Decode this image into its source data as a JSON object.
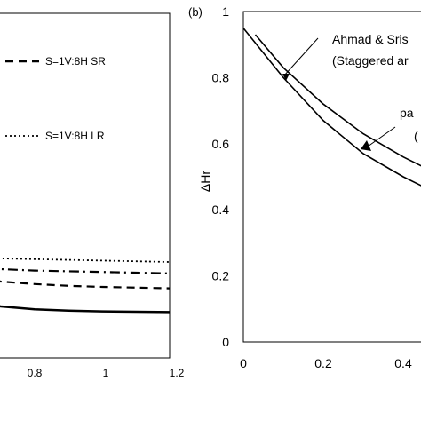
{
  "chart_data": [
    {
      "type": "line",
      "panel_label": "",
      "xlim": [
        0.6,
        1.2
      ],
      "x_ticks": [
        "0.8",
        "1",
        "1.2"
      ],
      "legend_placement": "right",
      "series": [
        {
          "name": "S=1V:8H LR",
          "style": "dotted",
          "x": [
            0.6,
            0.7,
            0.8,
            0.9,
            1.0,
            1.1,
            1.2
          ],
          "y": [
            0.285,
            0.28,
            0.278,
            0.276,
            0.274,
            0.272,
            0.27
          ]
        },
        {
          "name": "",
          "style": "dash-dot",
          "x": [
            0.6,
            0.7,
            0.8,
            0.9,
            1.0,
            1.1,
            1.2
          ],
          "y": [
            0.255,
            0.25,
            0.246,
            0.244,
            0.242,
            0.24,
            0.238
          ]
        },
        {
          "name": "S=1V:8H SR",
          "style": "dashed",
          "x": [
            0.6,
            0.7,
            0.8,
            0.9,
            1.0,
            1.1,
            1.2
          ],
          "y": [
            0.225,
            0.215,
            0.208,
            0.203,
            0.2,
            0.198,
            0.196
          ]
        },
        {
          "name": "",
          "style": "solid",
          "x": [
            0.6,
            0.7,
            0.8,
            0.9,
            1.0,
            1.1,
            1.2
          ],
          "y": [
            0.16,
            0.145,
            0.137,
            0.133,
            0.131,
            0.13,
            0.129
          ]
        }
      ]
    },
    {
      "type": "line",
      "panel_label": "(b)",
      "ylabel": "ΔHr",
      "xlim": [
        0,
        0.6
      ],
      "ylim": [
        0,
        1
      ],
      "x_ticks": [
        "0",
        "0.2",
        "0.4"
      ],
      "y_ticks": [
        "0",
        "0.2",
        "0.4",
        "0.6",
        "0.8",
        "1"
      ],
      "series": [
        {
          "name": "Ahmad & Sris",
          "style": "solid",
          "x": [
            0.03,
            0.1,
            0.2,
            0.3,
            0.4,
            0.5,
            0.6
          ],
          "y": [
            0.93,
            0.83,
            0.72,
            0.63,
            0.56,
            0.5,
            0.46
          ]
        },
        {
          "name": "",
          "style": "solid",
          "x": [
            0.0,
            0.1,
            0.2,
            0.3,
            0.4,
            0.5,
            0.6
          ],
          "y": [
            0.95,
            0.8,
            0.67,
            0.57,
            0.5,
            0.44,
            0.41
          ]
        }
      ],
      "annotations": [
        {
          "text": "Ahmad  & Sris",
          "arrow_to": [
            0.09,
            0.79
          ]
        },
        {
          "text": "(Staggered ar"
        },
        {
          "text": "pa",
          "arrow_to": [
            0.31,
            0.58
          ]
        },
        {
          "text": "("
        }
      ]
    }
  ]
}
